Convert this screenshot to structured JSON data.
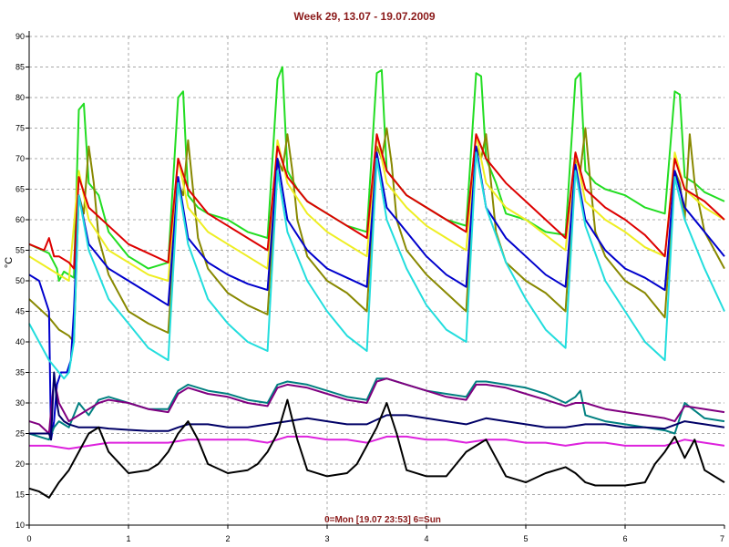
{
  "chart_data": {
    "type": "line",
    "title": "Week 29, 13.07 - 19.07.2009",
    "xlabel": "0=Mon [19.07 23:53] 6=Sun",
    "ylabel": "°C",
    "xlim": [
      0,
      7
    ],
    "ylim": [
      10,
      90
    ],
    "xticks": [
      "0",
      "1",
      "2",
      "3",
      "4",
      "5",
      "6",
      "7"
    ],
    "yticks": [
      "10",
      "15",
      "20",
      "25",
      "30",
      "35",
      "40",
      "45",
      "50",
      "55",
      "60",
      "65",
      "70",
      "75",
      "80",
      "85",
      "90"
    ],
    "grid": true,
    "series": [
      {
        "color": "#22dd22",
        "x": [
          0,
          0.2,
          0.28,
          0.3,
          0.35,
          0.4,
          0.45,
          0.5,
          0.55,
          0.6,
          0.7,
          0.8,
          1.0,
          1.2,
          1.4,
          1.5,
          1.55,
          1.6,
          1.7,
          1.8,
          2.0,
          2.2,
          2.4,
          2.5,
          2.55,
          2.6,
          2.7,
          2.8,
          3.0,
          3.2,
          3.4,
          3.5,
          3.55,
          3.6,
          3.7,
          3.8,
          4.0,
          4.2,
          4.4,
          4.5,
          4.55,
          4.6,
          4.7,
          4.8,
          5.0,
          5.2,
          5.4,
          5.5,
          5.55,
          5.6,
          5.7,
          5.8,
          6.0,
          6.2,
          6.4,
          6.5,
          6.55,
          6.6,
          6.7,
          6.8,
          7.0
        ],
        "values": [
          56,
          54.5,
          52,
          50,
          51.5,
          51,
          50.5,
          78,
          79,
          66,
          64,
          58,
          54,
          52,
          53,
          80,
          81,
          64,
          62,
          61,
          60,
          58,
          57,
          83,
          85,
          68,
          65,
          63,
          61,
          59,
          58,
          84,
          84.5,
          68,
          66,
          64,
          62,
          60,
          59,
          84,
          83.5,
          70,
          66,
          61,
          60,
          58,
          57.5,
          83,
          84,
          68,
          66,
          65,
          64,
          62,
          61,
          81,
          80.5,
          67,
          66,
          64.5,
          63
        ]
      },
      {
        "color": "#888800",
        "x": [
          0,
          0.2,
          0.3,
          0.4,
          0.45,
          0.5,
          0.55,
          0.6,
          0.65,
          0.7,
          0.8,
          1.0,
          1.2,
          1.4,
          1.5,
          1.55,
          1.6,
          1.65,
          1.7,
          1.8,
          2.0,
          2.2,
          2.4,
          2.5,
          2.55,
          2.6,
          2.65,
          2.7,
          2.8,
          3.0,
          3.2,
          3.4,
          3.5,
          3.55,
          3.6,
          3.65,
          3.7,
          3.8,
          4.0,
          4.2,
          4.4,
          4.5,
          4.55,
          4.6,
          4.65,
          4.7,
          4.8,
          5.0,
          5.2,
          5.4,
          5.5,
          5.55,
          5.6,
          5.65,
          5.7,
          5.8,
          6.0,
          6.2,
          6.4,
          6.5,
          6.55,
          6.6,
          6.65,
          6.7,
          6.8,
          7.0
        ],
        "values": [
          47,
          44,
          42,
          41,
          40,
          64,
          61,
          72,
          66,
          57,
          51,
          45,
          43,
          41.5,
          66,
          64,
          73,
          65,
          57,
          52,
          48,
          46,
          44.5,
          70,
          68,
          74,
          68,
          60,
          54,
          50,
          48,
          45,
          72,
          70,
          75,
          69,
          60,
          55,
          51,
          48,
          45,
          72,
          70,
          74,
          66,
          58,
          53,
          50,
          48,
          45,
          70,
          68,
          75,
          66,
          58,
          54,
          50,
          48,
          44,
          68,
          66,
          60,
          74,
          66,
          58,
          52
        ]
      },
      {
        "color": "#eeee22",
        "x": [
          0,
          0.2,
          0.4,
          0.5,
          0.6,
          0.8,
          1.0,
          1.2,
          1.4,
          1.5,
          1.6,
          1.8,
          2.0,
          2.2,
          2.4,
          2.5,
          2.6,
          2.8,
          3.0,
          3.2,
          3.4,
          3.5,
          3.6,
          3.8,
          4.0,
          4.2,
          4.4,
          4.5,
          4.6,
          4.8,
          5.0,
          5.2,
          5.4,
          5.5,
          5.6,
          5.8,
          6.0,
          6.2,
          6.4,
          6.5,
          6.6,
          6.8,
          7.0
        ],
        "values": [
          54,
          52,
          50,
          68,
          60,
          55,
          53,
          51,
          50,
          70,
          62,
          58,
          56,
          54,
          52,
          73,
          66,
          61,
          58,
          56,
          54,
          74,
          66,
          62,
          59,
          57,
          55,
          74,
          66,
          62,
          60,
          57.5,
          55,
          71,
          63,
          60,
          58,
          55.5,
          54,
          71,
          65,
          62,
          60
        ]
      },
      {
        "color": "#dd0000",
        "x": [
          0,
          0.15,
          0.2,
          0.25,
          0.3,
          0.4,
          0.45,
          0.5,
          0.6,
          0.8,
          1.0,
          1.2,
          1.4,
          1.5,
          1.6,
          1.8,
          2.0,
          2.2,
          2.4,
          2.5,
          2.6,
          2.8,
          3.0,
          3.2,
          3.4,
          3.5,
          3.6,
          3.8,
          4.0,
          4.2,
          4.4,
          4.5,
          4.6,
          4.8,
          5.0,
          5.2,
          5.4,
          5.5,
          5.6,
          5.8,
          6.0,
          6.2,
          6.4,
          6.5,
          6.6,
          6.8,
          7.0
        ],
        "values": [
          56,
          55,
          57,
          54,
          54,
          53,
          52,
          67,
          62,
          59,
          56,
          54.5,
          53,
          70,
          65,
          61,
          59,
          57,
          55,
          72,
          67,
          63,
          61,
          59,
          57,
          74,
          68,
          64,
          62,
          60,
          58,
          74,
          70,
          66,
          63,
          60,
          57,
          71,
          65,
          62,
          60,
          57.5,
          54,
          70,
          65,
          63,
          60
        ]
      },
      {
        "color": "#0000cc",
        "x": [
          0,
          0.1,
          0.2,
          0.22,
          0.25,
          0.28,
          0.32,
          0.38,
          0.42,
          0.45,
          0.5,
          0.6,
          0.8,
          1.0,
          1.2,
          1.4,
          1.5,
          1.6,
          1.8,
          2.0,
          2.2,
          2.4,
          2.5,
          2.6,
          2.8,
          3.0,
          3.2,
          3.4,
          3.5,
          3.6,
          3.8,
          4.0,
          4.2,
          4.4,
          4.5,
          4.6,
          4.8,
          5.0,
          5.2,
          5.4,
          5.5,
          5.6,
          5.8,
          6.0,
          6.2,
          6.4,
          6.5,
          6.6,
          6.8,
          7.0
        ],
        "values": [
          51,
          50,
          45,
          24,
          27,
          33,
          35,
          35,
          37,
          45,
          64,
          56,
          52,
          50,
          48,
          46,
          67,
          57,
          53,
          51,
          49.5,
          48.5,
          70,
          60,
          55,
          52,
          50.5,
          49,
          71,
          62,
          58,
          54,
          51,
          49,
          72,
          62,
          57,
          54,
          51,
          49,
          69,
          60,
          55,
          52,
          50.5,
          48.5,
          68,
          62,
          58,
          54
        ]
      },
      {
        "color": "#22dddd",
        "x": [
          0,
          0.1,
          0.2,
          0.3,
          0.35,
          0.4,
          0.45,
          0.5,
          0.6,
          0.8,
          1.0,
          1.2,
          1.4,
          1.5,
          1.6,
          1.8,
          2.0,
          2.2,
          2.4,
          2.5,
          2.6,
          2.8,
          3.0,
          3.2,
          3.4,
          3.5,
          3.6,
          3.8,
          4.0,
          4.2,
          4.4,
          4.5,
          4.6,
          4.8,
          5.0,
          5.2,
          5.4,
          5.5,
          5.6,
          5.8,
          6.0,
          6.2,
          6.4,
          6.5,
          6.6,
          6.8,
          7.0
        ],
        "values": [
          43,
          40,
          37,
          35,
          34,
          35,
          40,
          64,
          55,
          47,
          43,
          39,
          37,
          66,
          56,
          47,
          43,
          40,
          38.5,
          68,
          58,
          50,
          45,
          41,
          38.5,
          70,
          60,
          52,
          46,
          42,
          40,
          71,
          62,
          53,
          47,
          42,
          39,
          68,
          59,
          50,
          45,
          40,
          37,
          67,
          60,
          52,
          45
        ]
      },
      {
        "color": "#008080",
        "x": [
          0,
          0.1,
          0.2,
          0.25,
          0.3,
          0.4,
          0.5,
          0.6,
          0.7,
          0.8,
          1.0,
          1.2,
          1.4,
          1.5,
          1.6,
          1.8,
          2.0,
          2.2,
          2.4,
          2.5,
          2.6,
          2.8,
          3.0,
          3.2,
          3.4,
          3.5,
          3.6,
          3.8,
          4.0,
          4.2,
          4.4,
          4.5,
          4.6,
          4.8,
          5.0,
          5.2,
          5.4,
          5.5,
          5.55,
          5.6,
          5.8,
          6.0,
          6.2,
          6.4,
          6.5,
          6.6,
          6.8,
          7.0
        ],
        "values": [
          25,
          24.5,
          24,
          26,
          27,
          26,
          30,
          28,
          30.5,
          31,
          30,
          29,
          29,
          32,
          33,
          32,
          31.5,
          30.5,
          30,
          33,
          33.5,
          33,
          32,
          31,
          30.5,
          34,
          34,
          33,
          32,
          31.5,
          31,
          33.5,
          33.5,
          33,
          32.5,
          31.5,
          30,
          31,
          32,
          28,
          27,
          26.5,
          26,
          25.5,
          25,
          30,
          27.5,
          27
        ]
      },
      {
        "color": "#800080",
        "x": [
          0,
          0.1,
          0.2,
          0.25,
          0.3,
          0.4,
          0.5,
          0.6,
          0.7,
          0.8,
          1.0,
          1.2,
          1.4,
          1.5,
          1.6,
          1.8,
          2.0,
          2.2,
          2.4,
          2.5,
          2.6,
          2.8,
          3.0,
          3.2,
          3.4,
          3.5,
          3.6,
          3.8,
          4.0,
          4.2,
          4.4,
          4.5,
          4.6,
          4.8,
          5.0,
          5.2,
          5.4,
          5.5,
          5.6,
          5.8,
          6.0,
          6.2,
          6.4,
          6.5,
          6.6,
          6.8,
          7.0
        ],
        "values": [
          27,
          26.5,
          25,
          34,
          30,
          27,
          28,
          29,
          30,
          30.5,
          30,
          29,
          28.5,
          31.5,
          32.5,
          31.5,
          31,
          30,
          29.5,
          32.5,
          33,
          32.5,
          31.5,
          30.5,
          30,
          33.5,
          34,
          33,
          32,
          31,
          30.5,
          33,
          33,
          32.5,
          31.5,
          30.5,
          29.5,
          30,
          30,
          29,
          28.5,
          28,
          27.5,
          27,
          29.5,
          29,
          28.5
        ]
      },
      {
        "color": "#000066",
        "x": [
          0,
          0.1,
          0.2,
          0.22,
          0.25,
          0.28,
          0.3,
          0.35,
          0.4,
          0.5,
          0.6,
          0.7,
          0.8,
          1.0,
          1.2,
          1.4,
          1.5,
          1.6,
          1.8,
          2.0,
          2.2,
          2.4,
          2.6,
          2.8,
          3.0,
          3.2,
          3.4,
          3.6,
          3.8,
          4.0,
          4.2,
          4.4,
          4.6,
          4.8,
          5.0,
          5.2,
          5.4,
          5.6,
          5.8,
          6.0,
          6.2,
          6.4,
          6.6,
          6.8,
          7.0
        ],
        "values": [
          25,
          25,
          25,
          24,
          35,
          30,
          28,
          27,
          26.5,
          26,
          26,
          26,
          25.8,
          25.6,
          25.4,
          25.4,
          26,
          26.5,
          26.5,
          26,
          26,
          26.5,
          27,
          27.5,
          27,
          26.5,
          26.5,
          28,
          28,
          27.5,
          27,
          26.5,
          27.5,
          27,
          26.5,
          26,
          26,
          26.5,
          26.5,
          26,
          26,
          25.8,
          27,
          26.5,
          26
        ]
      },
      {
        "color": "#dd22dd",
        "x": [
          0,
          0.2,
          0.4,
          0.6,
          0.8,
          1.0,
          1.2,
          1.4,
          1.6,
          1.8,
          2.0,
          2.2,
          2.4,
          2.6,
          2.8,
          3.0,
          3.2,
          3.4,
          3.6,
          3.8,
          4.0,
          4.2,
          4.4,
          4.6,
          4.8,
          5.0,
          5.2,
          5.4,
          5.6,
          5.8,
          6.0,
          6.2,
          6.4,
          6.6,
          6.8,
          7.0
        ],
        "values": [
          23,
          23,
          22.5,
          23,
          23.5,
          23.5,
          23.5,
          23.5,
          24,
          24,
          24,
          24,
          23.5,
          24.5,
          24.5,
          24,
          24,
          23.5,
          24.5,
          24.5,
          24,
          24,
          23.5,
          24,
          24,
          23.5,
          23.5,
          23,
          23.5,
          23.5,
          23,
          23,
          23,
          24,
          23.5,
          23
        ]
      },
      {
        "color": "#000000",
        "x": [
          0,
          0.1,
          0.2,
          0.3,
          0.4,
          0.5,
          0.6,
          0.7,
          0.8,
          1.0,
          1.2,
          1.3,
          1.4,
          1.5,
          1.6,
          1.7,
          1.8,
          2.0,
          2.2,
          2.3,
          2.4,
          2.5,
          2.6,
          2.7,
          2.8,
          3.0,
          3.2,
          3.3,
          3.4,
          3.5,
          3.6,
          3.7,
          3.8,
          4.0,
          4.2,
          4.3,
          4.4,
          4.5,
          4.6,
          4.7,
          4.8,
          5.0,
          5.2,
          5.4,
          5.5,
          5.6,
          5.7,
          5.8,
          6.0,
          6.2,
          6.3,
          6.4,
          6.5,
          6.6,
          6.7,
          6.8,
          7.0
        ],
        "values": [
          16,
          15.5,
          14.5,
          17,
          19,
          22,
          25,
          26,
          22,
          18.5,
          19,
          20,
          22,
          25,
          27,
          24,
          20,
          18.5,
          19,
          20,
          22,
          25,
          30.5,
          24,
          19,
          18,
          18.5,
          20,
          23,
          26,
          30,
          25,
          19,
          18,
          18,
          20,
          22,
          23,
          24,
          21,
          18,
          17,
          18.5,
          19.5,
          18.5,
          17,
          16.5,
          16.5,
          16.5,
          17,
          20,
          22,
          24.5,
          21,
          24,
          19,
          17
        ]
      }
    ]
  }
}
